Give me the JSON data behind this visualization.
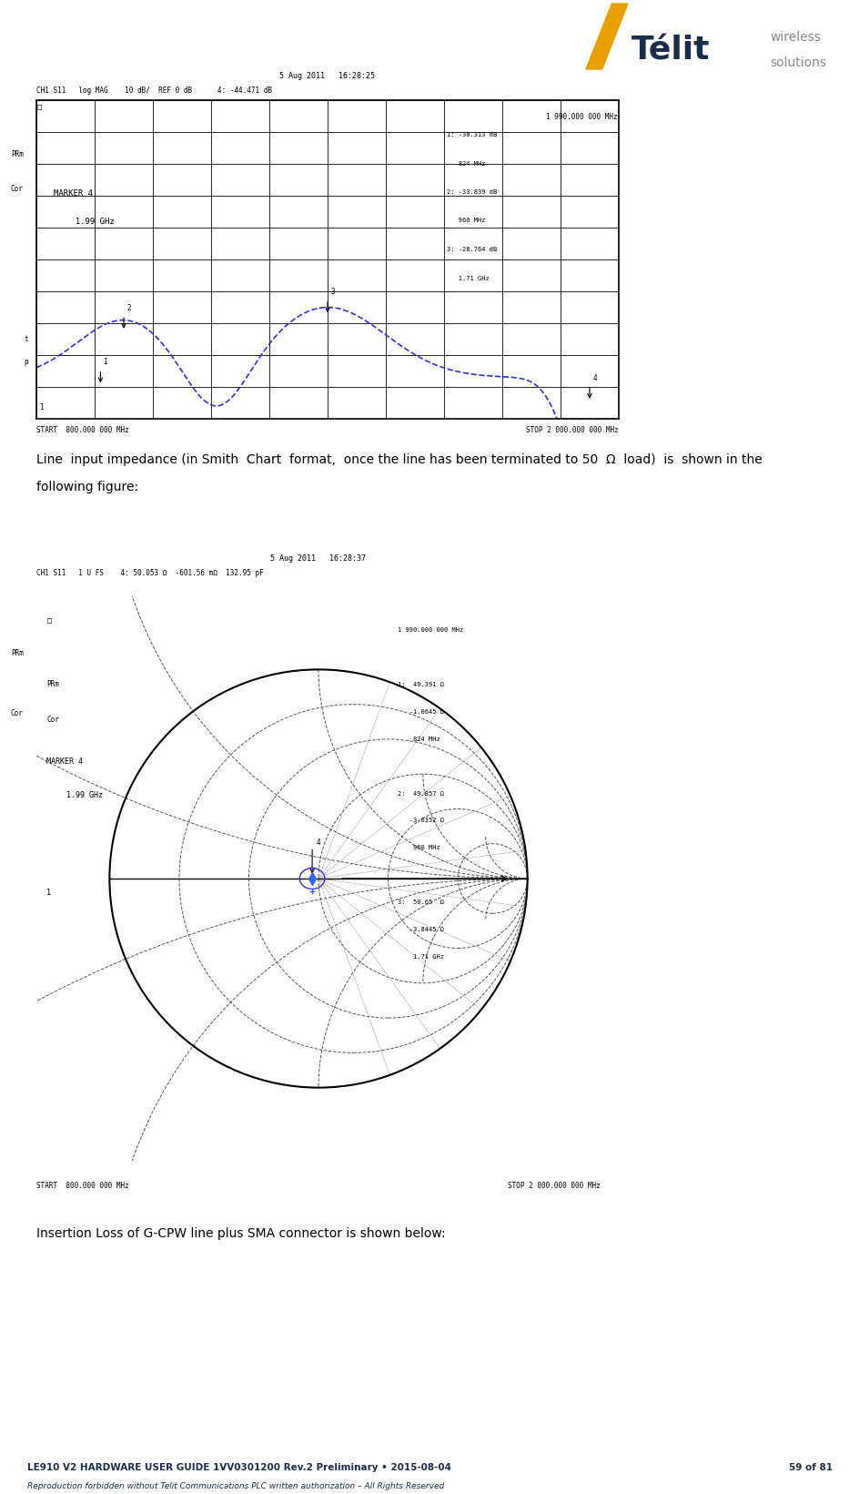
{
  "page_width": 9.45,
  "page_height": 16.41,
  "bg_color": "#ffffff",
  "telit_color": "#1a2e4a",
  "telit_accent_color": "#e8a000",
  "gray": "#888888",
  "light_gray": "#b0b0b0",
  "dark_navy": "#1a2e4a",
  "chart_line_color": "#3333cc",
  "chart_bg": "#ffffff",
  "chart_grid_color": "#000000",
  "chart_border_color": "#000000",
  "chart1_datetime": "5 Aug 2011   16:28:25",
  "chart1_ch_line": "CH1 S11   log MAG    10 dB/  REF 0 dB      4: -44.471 dB",
  "chart1_top_right": "1 990.000 000 MHz",
  "chart1_m1": "1: -38.313 dB",
  "chart1_m1f": "   824 MHz",
  "chart1_m2": "2: -33.839 dB",
  "chart1_m2f": "   960 MHz",
  "chart1_m3": "3: -28.764 dB",
  "chart1_m3f": "   1.71 GHz",
  "chart1_marker_label": "MARKER 4",
  "chart1_marker_freq": "  1.99 GHz",
  "chart1_start": "START  800.000 000 MHz",
  "chart1_stop": "STOP 2 000.000 000 MHz",
  "text1_line1": "Line  input impedance (in Smith  Chart  format,  once the line has been terminated to 50  Ω  load)  is  shown in the",
  "text1_line2": "following figure:",
  "chart2_datetime": "5 Aug 2011   16:28:37",
  "chart2_ch_line": "CH1 S11   1 U FS    4: 50.053 Ω  -601.56 mΩ  132.95 pF",
  "chart2_top_right": "1 990.000 000 MHz",
  "chart2_m1": "1:  49.391 Ω",
  "chart2_m1r": "   -1.0645 Ω",
  "chart2_m1f": "    824 MHz",
  "chart2_m2": "2:  49.857 Ω",
  "chart2_m2r": "   -3.0352 Ω",
  "chart2_m2f": "    960 MHz",
  "chart2_m3": "3:  50.65  Ω",
  "chart2_m3r": "   -3.8445 Ω",
  "chart2_m3f": "    1.71 GHz",
  "chart2_marker_label": "MARKER 4",
  "chart2_marker_freq": "  1.99 GHz",
  "chart2_start": "START  800.000 000 MHz",
  "chart2_stop": "STOP 2 000.000 000 MHz",
  "text2": "Insertion Loss of G-CPW line plus SMA connector is shown below:",
  "footer_line1": "LE910 V2 HARDWARE USER GUIDE 1VV0301200 Rev.2 Preliminary • 2015-08-04",
  "footer_line1_right": "59 of 81",
  "footer_line2": "Reproduction forbidden without Telit Communications PLC written authorization – All Rights Reserved"
}
